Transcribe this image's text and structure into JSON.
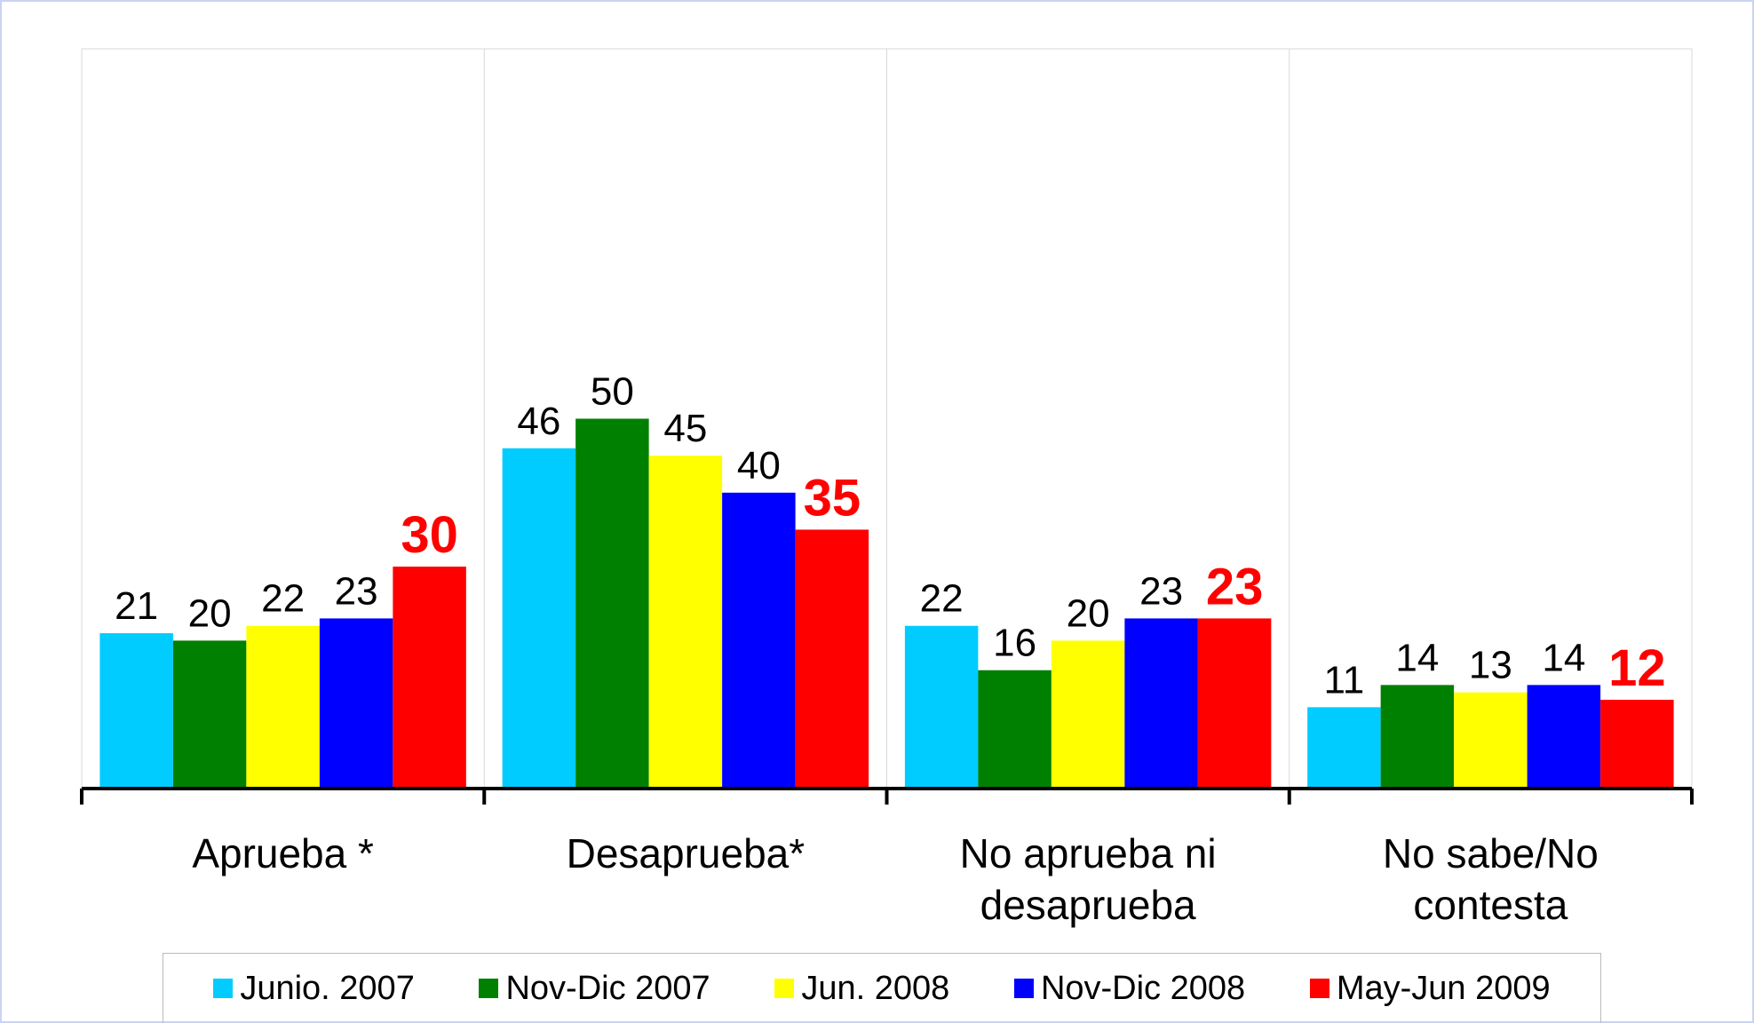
{
  "chart_data": {
    "type": "bar",
    "categories": [
      "Aprueba *",
      "Desaprueba*",
      "No aprueba ni desaprueba",
      "No sabe/No contesta"
    ],
    "series": [
      {
        "name": "Junio. 2007",
        "color": "#00ccff",
        "values": [
          21,
          46,
          22,
          11
        ]
      },
      {
        "name": "Nov-Dic 2007",
        "color": "#008000",
        "values": [
          20,
          50,
          16,
          14
        ]
      },
      {
        "name": "Jun. 2008",
        "color": "#ffff00",
        "values": [
          22,
          45,
          20,
          13
        ]
      },
      {
        "name": "Nov-Dic 2008",
        "color": "#0000ff",
        "values": [
          23,
          40,
          23,
          14
        ]
      },
      {
        "name": "May-Jun 2009",
        "color": "#ff0000",
        "values": [
          30,
          35,
          23,
          12
        ]
      }
    ],
    "ylim": [
      0,
      100
    ],
    "legend": "bottom"
  }
}
